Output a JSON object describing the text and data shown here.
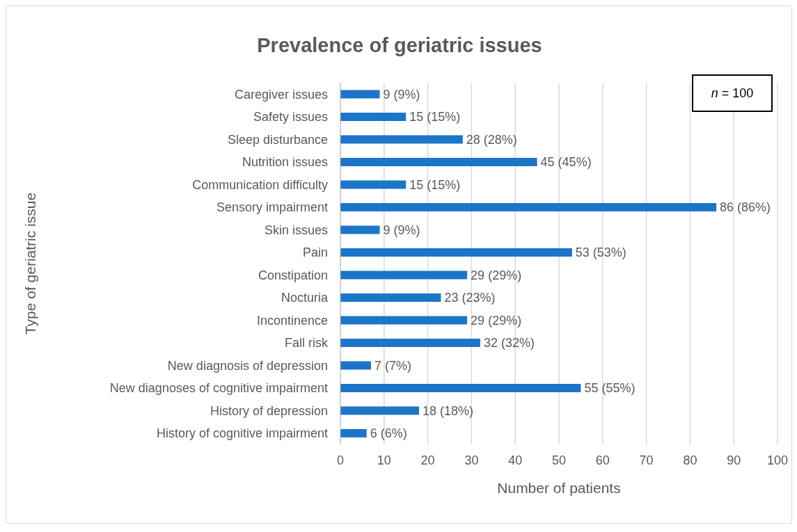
{
  "chart_data": {
    "type": "bar",
    "orientation": "horizontal",
    "title": "Prevalence of geriatric issues",
    "xlabel": "Number of patients",
    "ylabel": "Type of geriatric issue",
    "categories": [
      "Caregiver issues",
      "Safety issues",
      "Sleep disturbance",
      "Nutrition issues",
      "Communication difficulty",
      "Sensory impairment",
      "Skin issues",
      "Pain",
      "Constipation",
      "Nocturia",
      "Incontinence",
      "Fall risk",
      "New diagnosis of depression",
      "New diagnoses of cognitive impairment",
      "History of depression",
      "History of cognitive impairment"
    ],
    "values": [
      9,
      15,
      28,
      45,
      15,
      86,
      9,
      53,
      29,
      23,
      29,
      32,
      7,
      55,
      18,
      6
    ],
    "value_labels": [
      "9 (9%)",
      "15 (15%)",
      "28 (28%)",
      "45 (45%)",
      "15 (15%)",
      "86 (86%)",
      "9 (9%)",
      "53 (53%)",
      "29 (29%)",
      "23 (23%)",
      "29 (29%)",
      "32 (32%)",
      "7 (7%)",
      "55 (55%)",
      "18 (18%)",
      "6 (6%)"
    ],
    "color": "#1b75c9",
    "xlim": [
      0,
      100
    ],
    "xticks": [
      0,
      10,
      20,
      30,
      40,
      50,
      60,
      70,
      80,
      90,
      100
    ],
    "grid": "x",
    "annotations": [
      "n = 100"
    ]
  }
}
